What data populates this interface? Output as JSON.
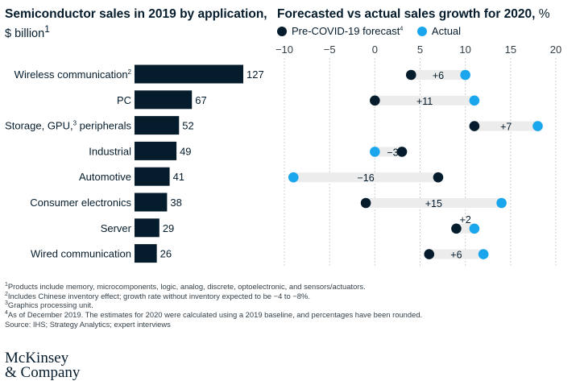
{
  "left_title": "Semiconductor sales in 2019 by application,",
  "left_subtitle": "$ billion",
  "left_subtitle_note": "1",
  "right_title": "Forecasted vs actual sales growth for 2020,",
  "right_title_unit": "%",
  "legend": [
    {
      "label": "Pre-COVID-19 forecast",
      "note": "4",
      "color": "#051c2c"
    },
    {
      "label": "Actual",
      "note": "",
      "color": "#1aa6ec"
    }
  ],
  "colors": {
    "bar": "#051c2c",
    "forecast": "#051c2c",
    "actual": "#1aa6ec",
    "range": "#ececec",
    "grid": "#d0d0d0"
  },
  "chart_data": [
    {
      "type": "bar",
      "orientation": "horizontal",
      "title": "Semiconductor sales in 2019 by application, $ billion",
      "categories": [
        {
          "label": "Wireless communication",
          "note": "2"
        },
        {
          "label": "PC",
          "note": ""
        },
        {
          "label": "Storage, GPU,",
          "note": "3",
          "label_suffix": " peripherals"
        },
        {
          "label": "Industrial",
          "note": ""
        },
        {
          "label": "Automotive",
          "note": ""
        },
        {
          "label": "Consumer electronics",
          "note": ""
        },
        {
          "label": "Server",
          "note": ""
        },
        {
          "label": "Wired communication",
          "note": ""
        }
      ],
      "values": [
        127,
        67,
        52,
        49,
        41,
        38,
        29,
        26
      ]
    },
    {
      "type": "dumbbell",
      "title": "Forecasted vs actual sales growth for 2020, %",
      "xlim": [
        -10,
        20
      ],
      "xticks": [
        "−10",
        "−5",
        "0",
        "5",
        "10",
        "15",
        "20"
      ],
      "xtick_values": [
        -10,
        -5,
        0,
        5,
        10,
        15,
        20
      ],
      "grid": true,
      "series": [
        {
          "name": "Pre-COVID-19 forecast",
          "values": [
            4,
            0,
            11,
            3,
            7,
            -1,
            9,
            6
          ]
        },
        {
          "name": "Actual",
          "values": [
            10,
            11,
            18,
            0,
            -9,
            14,
            11,
            12
          ]
        }
      ],
      "diff_labels": [
        "+6",
        "+11",
        "+7",
        "−3",
        "−16",
        "+15",
        "+2",
        "+6"
      ]
    }
  ],
  "footnotes": [
    {
      "note": "1",
      "text": "Products include memory, microcomponents, logic, analog, discrete, optoelectronic, and sensors/actuators."
    },
    {
      "note": "2",
      "text": "Includes Chinese inventory effect; growth rate without inventory expected to be −4 to −8%."
    },
    {
      "note": "3",
      "text": "Graphics processing unit."
    },
    {
      "note": "4",
      "text": "As of December 2019. The estimates for 2020 were calculated using a 2019 baseline, and percentages have been rounded."
    },
    {
      "note": "",
      "text": "Source: IHS; Strategy Analytics; expert interviews"
    }
  ],
  "logo": {
    "line1": "McKinsey",
    "line2": "& Company"
  }
}
